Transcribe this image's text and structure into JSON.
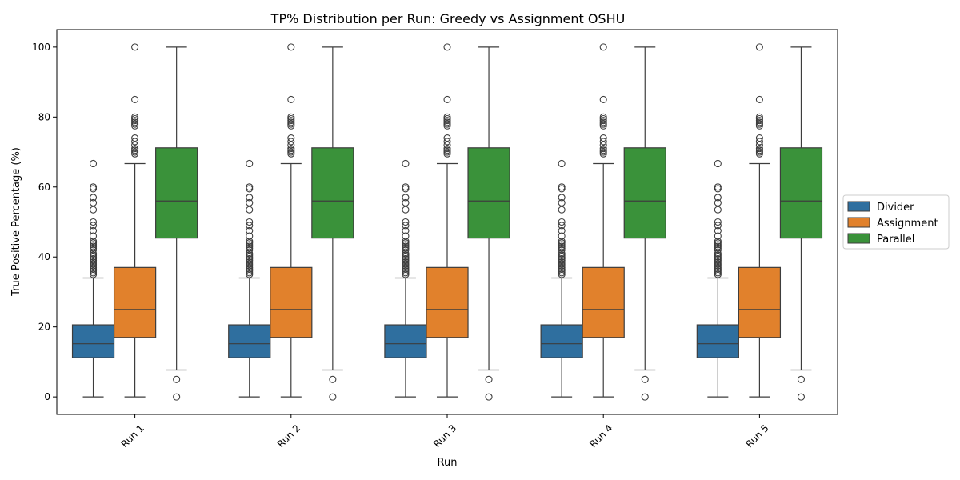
{
  "chart_data": {
    "type": "boxplot",
    "title": "TP% Distribution per Run: Greedy vs Assignment OSHU",
    "xlabel": "Run",
    "ylabel": "True Positive Percentage (%)",
    "ylim": [
      -5,
      105
    ],
    "yticks": [
      0,
      20,
      40,
      60,
      80,
      100
    ],
    "categories": [
      "Run 1",
      "Run 2",
      "Run 3",
      "Run 4",
      "Run 5"
    ],
    "legend_position": "right-outside",
    "grid": false,
    "series": [
      {
        "name": "Divider",
        "color": "#2f6f9f",
        "stats": {
          "whisker_low": 0,
          "q1": 11.2,
          "median": 15.2,
          "q3": 20.6,
          "whisker_high": 34
        },
        "outliers": [
          35,
          35.5,
          36,
          36.5,
          37,
          37.5,
          38,
          38.5,
          39,
          39.5,
          40,
          40.5,
          41,
          42,
          42.5,
          43,
          43.5,
          44,
          44.5,
          46,
          47.5,
          49,
          50,
          53.5,
          55.5,
          57,
          59.5,
          60,
          66.7
        ]
      },
      {
        "name": "Assignment",
        "color": "#e1812c",
        "stats": {
          "whisker_low": 0,
          "q1": 17,
          "median": 25,
          "q3": 37,
          "whisker_high": 66.7
        },
        "outliers": [
          69.5,
          70,
          70.5,
          71,
          72,
          73,
          74,
          77.5,
          78,
          78.5,
          79,
          79.5,
          80,
          85,
          100
        ]
      },
      {
        "name": "Parallel",
        "color": "#3a923a",
        "stats": {
          "whisker_low": 7.7,
          "q1": 45.4,
          "median": 56,
          "q3": 71.2,
          "whisker_high": 100
        },
        "outliers": [
          0,
          5
        ]
      }
    ]
  }
}
